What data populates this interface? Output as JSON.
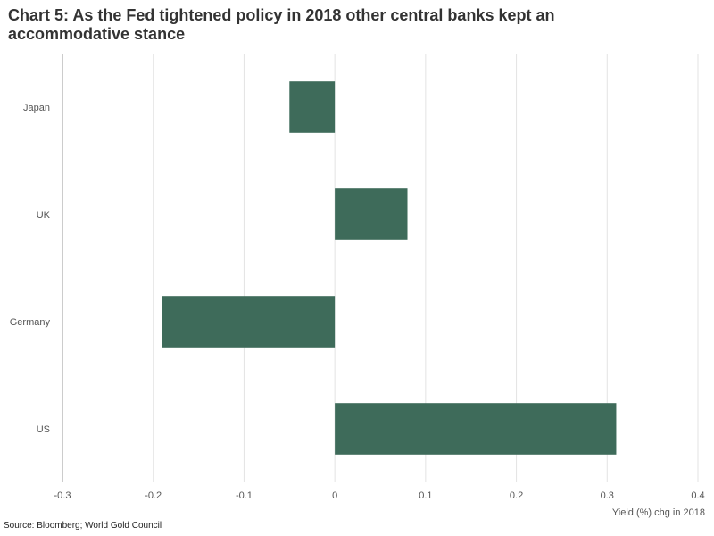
{
  "chart_data": {
    "type": "bar",
    "orientation": "horizontal",
    "title": "Chart 5: As the Fed tightened policy in 2018 other central banks kept an accommodative stance",
    "categories": [
      "Japan",
      "UK",
      "Germany",
      "US"
    ],
    "values": [
      -0.05,
      0.08,
      -0.19,
      0.31
    ],
    "xlabel": "Yield (%) chg in 2018",
    "ylabel": "",
    "xlim": [
      -0.3,
      0.4
    ],
    "xticks": [
      -0.3,
      -0.2,
      -0.1,
      0,
      0.1,
      0.2,
      0.3,
      0.4
    ],
    "xtick_labels": [
      "-0.3",
      "-0.2",
      "-0.1",
      "0",
      "0.1",
      "0.2",
      "0.3",
      "0.4"
    ],
    "grid": "vertical",
    "legend": "none",
    "bar_color": "#3e6b5a",
    "source": "Source: Bloomberg; World Gold Council"
  }
}
